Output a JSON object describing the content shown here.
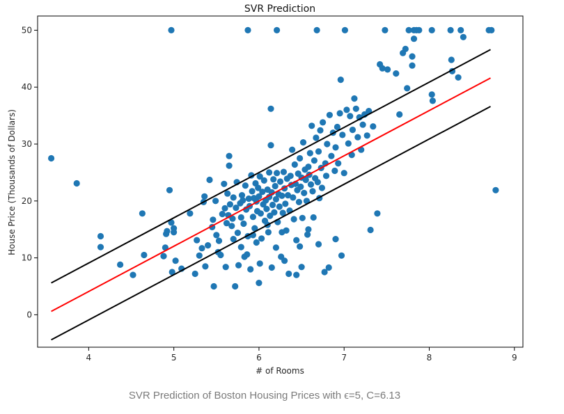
{
  "chart_data": {
    "type": "scatter",
    "title": "SVR Prediction",
    "xlabel": "# of Rooms",
    "ylabel": "House Price (Thousands of Dollars)",
    "xlim": [
      3.4,
      9.1
    ],
    "ylim": [
      -5.7,
      52.5
    ],
    "xticks": [
      4,
      5,
      6,
      7,
      8,
      9
    ],
    "yticks": [
      0,
      10,
      20,
      30,
      40,
      50
    ],
    "grid": false,
    "colors": {
      "points": "#1f77b4",
      "prediction": "#ff0000",
      "margin": "#000000"
    },
    "lines": [
      {
        "role": "prediction",
        "x": [
          3.56,
          8.72
        ],
        "y": [
          0.6,
          41.6
        ]
      },
      {
        "role": "upper-margin",
        "x": [
          3.56,
          8.72
        ],
        "y": [
          5.6,
          46.6
        ]
      },
      {
        "role": "lower-margin",
        "x": [
          3.56,
          8.72
        ],
        "y": [
          -4.4,
          36.6
        ]
      }
    ],
    "points": [
      [
        3.56,
        27.5
      ],
      [
        3.86,
        23.1
      ],
      [
        4.14,
        13.8
      ],
      [
        4.14,
        11.9
      ],
      [
        4.37,
        8.8
      ],
      [
        4.52,
        7.0
      ],
      [
        4.63,
        17.8
      ],
      [
        4.65,
        10.5
      ],
      [
        4.88,
        10.3
      ],
      [
        4.9,
        11.8
      ],
      [
        4.91,
        14.2
      ],
      [
        4.92,
        14.7
      ],
      [
        4.95,
        21.9
      ],
      [
        4.97,
        50.0
      ],
      [
        4.97,
        16.2
      ],
      [
        4.98,
        7.5
      ],
      [
        5.0,
        14.5
      ],
      [
        5.0,
        15.2
      ],
      [
        5.02,
        9.5
      ],
      [
        5.09,
        8.1
      ],
      [
        5.19,
        17.8
      ],
      [
        5.25,
        7.2
      ],
      [
        5.27,
        13.1
      ],
      [
        5.3,
        10.4
      ],
      [
        5.33,
        11.7
      ],
      [
        5.35,
        19.8
      ],
      [
        5.36,
        20.8
      ],
      [
        5.37,
        8.5
      ],
      [
        5.4,
        12.2
      ],
      [
        5.42,
        23.7
      ],
      [
        5.45,
        15.4
      ],
      [
        5.46,
        16.7
      ],
      [
        5.47,
        5.0
      ],
      [
        5.49,
        20.0
      ],
      [
        5.5,
        14.0
      ],
      [
        5.53,
        13.0
      ],
      [
        5.55,
        10.5
      ],
      [
        5.57,
        17.7
      ],
      [
        5.59,
        23.0
      ],
      [
        5.6,
        18.7
      ],
      [
        5.61,
        8.4
      ],
      [
        5.62,
        16.1
      ],
      [
        5.63,
        21.3
      ],
      [
        5.64,
        17.5
      ],
      [
        5.65,
        26.2
      ],
      [
        5.65,
        27.9
      ],
      [
        5.66,
        19.4
      ],
      [
        5.68,
        15.6
      ],
      [
        5.7,
        20.6
      ],
      [
        5.7,
        13.3
      ],
      [
        5.72,
        5.0
      ],
      [
        5.73,
        18.8
      ],
      [
        5.74,
        23.3
      ],
      [
        5.75,
        14.4
      ],
      [
        5.76,
        8.7
      ],
      [
        5.78,
        19.6
      ],
      [
        5.79,
        17.1
      ],
      [
        5.8,
        21.0
      ],
      [
        5.81,
        20.1
      ],
      [
        5.82,
        16.0
      ],
      [
        5.83,
        10.2
      ],
      [
        5.84,
        22.7
      ],
      [
        5.85,
        18.5
      ],
      [
        5.86,
        10.6
      ],
      [
        5.87,
        50.0
      ],
      [
        5.87,
        13.8
      ],
      [
        5.88,
        20.4
      ],
      [
        5.89,
        19.1
      ],
      [
        5.9,
        8.0
      ],
      [
        5.91,
        24.5
      ],
      [
        5.92,
        21.7
      ],
      [
        5.93,
        17.2
      ],
      [
        5.94,
        20.5
      ],
      [
        5.95,
        15.2
      ],
      [
        5.96,
        23.1
      ],
      [
        5.97,
        19.9
      ],
      [
        5.97,
        12.7
      ],
      [
        5.98,
        18.2
      ],
      [
        5.99,
        22.3
      ],
      [
        6.0,
        20.8
      ],
      [
        6.0,
        5.6
      ],
      [
        6.01,
        24.3
      ],
      [
        6.02,
        17.8
      ],
      [
        6.03,
        13.4
      ],
      [
        6.04,
        21.6
      ],
      [
        6.05,
        19.4
      ],
      [
        6.06,
        23.6
      ],
      [
        6.07,
        16.5
      ],
      [
        6.08,
        20.1
      ],
      [
        6.09,
        18.6
      ],
      [
        6.1,
        22.0
      ],
      [
        6.11,
        14.5
      ],
      [
        6.12,
        25.0
      ],
      [
        6.12,
        20.7
      ],
      [
        6.13,
        17.4
      ],
      [
        6.14,
        36.2
      ],
      [
        6.14,
        29.8
      ],
      [
        6.15,
        21.5
      ],
      [
        6.15,
        8.3
      ],
      [
        6.16,
        19.3
      ],
      [
        6.17,
        23.8
      ],
      [
        6.18,
        18.0
      ],
      [
        6.19,
        22.6
      ],
      [
        6.2,
        11.8
      ],
      [
        6.2,
        20.3
      ],
      [
        6.21,
        50.0
      ],
      [
        6.21,
        24.9
      ],
      [
        6.22,
        16.3
      ],
      [
        6.23,
        21.2
      ],
      [
        6.24,
        19.0
      ],
      [
        6.25,
        23.4
      ],
      [
        6.26,
        10.2
      ],
      [
        6.27,
        20.9
      ],
      [
        6.28,
        17.9
      ],
      [
        6.29,
        25.1
      ],
      [
        6.3,
        22.2
      ],
      [
        6.31,
        19.5
      ],
      [
        6.32,
        14.8
      ],
      [
        6.33,
        23.9
      ],
      [
        6.34,
        21.0
      ],
      [
        6.35,
        7.2
      ],
      [
        6.36,
        18.3
      ],
      [
        6.37,
        24.4
      ],
      [
        6.38,
        22.8
      ],
      [
        6.39,
        29.0
      ],
      [
        6.4,
        20.6
      ],
      [
        6.41,
        16.8
      ],
      [
        6.42,
        26.4
      ],
      [
        6.43,
        23.0
      ],
      [
        6.44,
        13.1
      ],
      [
        6.45,
        21.9
      ],
      [
        6.46,
        24.8
      ],
      [
        6.47,
        19.8
      ],
      [
        6.48,
        27.5
      ],
      [
        6.49,
        22.5
      ],
      [
        6.5,
        8.4
      ],
      [
        6.5,
        24.1
      ],
      [
        6.51,
        17.0
      ],
      [
        6.52,
        30.3
      ],
      [
        6.53,
        21.4
      ],
      [
        6.54,
        25.5
      ],
      [
        6.55,
        23.7
      ],
      [
        6.56,
        20.0
      ],
      [
        6.57,
        14.1
      ],
      [
        6.58,
        26.0
      ],
      [
        6.59,
        24.6
      ],
      [
        6.6,
        28.4
      ],
      [
        6.61,
        22.9
      ],
      [
        6.62,
        33.2
      ],
      [
        6.63,
        21.7
      ],
      [
        6.64,
        17.1
      ],
      [
        6.65,
        27.1
      ],
      [
        6.66,
        24.0
      ],
      [
        6.67,
        31.1
      ],
      [
        6.68,
        50.0
      ],
      [
        6.69,
        23.3
      ],
      [
        6.7,
        28.7
      ],
      [
        6.71,
        20.5
      ],
      [
        6.72,
        32.4
      ],
      [
        6.73,
        25.8
      ],
      [
        6.74,
        22.3
      ],
      [
        6.75,
        33.8
      ],
      [
        6.77,
        7.5
      ],
      [
        6.78,
        26.6
      ],
      [
        6.79,
        24.4
      ],
      [
        6.8,
        30.0
      ],
      [
        6.82,
        8.3
      ],
      [
        6.83,
        35.1
      ],
      [
        6.85,
        27.9
      ],
      [
        6.87,
        32.0
      ],
      [
        6.89,
        25.3
      ],
      [
        6.9,
        29.4
      ],
      [
        6.92,
        33.0
      ],
      [
        6.93,
        26.6
      ],
      [
        6.95,
        35.4
      ],
      [
        6.96,
        41.3
      ],
      [
        6.97,
        10.4
      ],
      [
        6.98,
        31.6
      ],
      [
        7.0,
        24.9
      ],
      [
        7.01,
        50.0
      ],
      [
        7.03,
        36.0
      ],
      [
        7.05,
        30.1
      ],
      [
        7.07,
        34.9
      ],
      [
        7.09,
        28.1
      ],
      [
        7.1,
        32.5
      ],
      [
        7.12,
        38.0
      ],
      [
        7.14,
        36.2
      ],
      [
        7.16,
        31.2
      ],
      [
        7.18,
        34.7
      ],
      [
        7.2,
        29.0
      ],
      [
        7.22,
        33.4
      ],
      [
        7.24,
        35.2
      ],
      [
        7.27,
        31.5
      ],
      [
        7.29,
        35.8
      ],
      [
        7.31,
        14.9
      ],
      [
        7.34,
        33.1
      ],
      [
        7.39,
        17.8
      ],
      [
        7.42,
        44.0
      ],
      [
        7.45,
        43.3
      ],
      [
        7.48,
        50.0
      ],
      [
        7.51,
        43.1
      ],
      [
        7.61,
        42.4
      ],
      [
        7.65,
        35.2
      ],
      [
        7.69,
        46.0
      ],
      [
        7.72,
        46.7
      ],
      [
        7.74,
        39.8
      ],
      [
        7.76,
        50.0
      ],
      [
        7.8,
        43.8
      ],
      [
        7.8,
        45.4
      ],
      [
        7.82,
        50.0
      ],
      [
        7.85,
        50.0
      ],
      [
        7.88,
        50.0
      ],
      [
        8.03,
        50.0
      ],
      [
        8.03,
        38.7
      ],
      [
        8.04,
        37.6
      ],
      [
        8.25,
        50.0
      ],
      [
        8.26,
        44.8
      ],
      [
        8.27,
        42.8
      ],
      [
        8.34,
        41.7
      ],
      [
        8.37,
        50.0
      ],
      [
        8.4,
        48.8
      ],
      [
        8.7,
        50.0
      ],
      [
        8.73,
        50.0
      ],
      [
        8.78,
        21.9
      ],
      [
        7.82,
        48.5
      ],
      [
        6.58,
        15.0
      ],
      [
        6.48,
        12.0
      ],
      [
        6.3,
        9.5
      ],
      [
        6.1,
        15.8
      ],
      [
        5.93,
        14.0
      ],
      [
        5.52,
        11.0
      ],
      [
        5.79,
        11.9
      ],
      [
        6.44,
        7.0
      ],
      [
        6.7,
        12.4
      ],
      [
        6.01,
        9.0
      ],
      [
        6.27,
        14.5
      ],
      [
        5.69,
        16.9
      ],
      [
        6.9,
        13.3
      ]
    ]
  },
  "caption": "SVR Prediction of Boston Housing Prices with ϵ=5, C=6.13"
}
